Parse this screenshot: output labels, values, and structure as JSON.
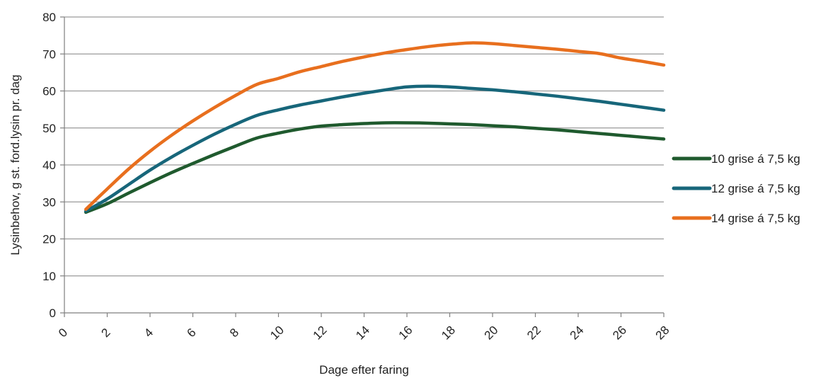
{
  "chart_data": {
    "type": "line",
    "title": "",
    "xlabel": "Dage efter faring",
    "ylabel": "Lysinbehov, g st. ford.lysin pr. dag",
    "xlim": [
      0,
      28
    ],
    "ylim": [
      0,
      80
    ],
    "x_ticks": [
      0,
      2,
      4,
      6,
      8,
      10,
      12,
      14,
      16,
      18,
      20,
      22,
      24,
      26,
      28
    ],
    "y_ticks": [
      0,
      10,
      20,
      30,
      40,
      50,
      60,
      70,
      80
    ],
    "grid": "horizontal",
    "legend_position": "right",
    "series": [
      {
        "name": "10 grise á 7,5 kg",
        "color": "#1f5a2e",
        "x": [
          1,
          2,
          3,
          4,
          5,
          6,
          7,
          8,
          9,
          10,
          11,
          12,
          13,
          14,
          15,
          16,
          17,
          18,
          19,
          20,
          21,
          22,
          23,
          24,
          25,
          26,
          27,
          28
        ],
        "y": [
          27.2,
          29.5,
          32.4,
          35.2,
          37.9,
          40.4,
          42.8,
          45.1,
          47.3,
          48.6,
          49.7,
          50.5,
          50.9,
          51.2,
          51.4,
          51.4,
          51.3,
          51.1,
          50.9,
          50.6,
          50.3,
          49.9,
          49.5,
          49.0,
          48.5,
          48.0,
          47.5,
          47.0
        ]
      },
      {
        "name": "12 grise á 7,5 kg",
        "color": "#17667a",
        "x": [
          1,
          2,
          3,
          4,
          5,
          6,
          7,
          8,
          9,
          10,
          11,
          12,
          13,
          14,
          15,
          16,
          17,
          18,
          19,
          20,
          21,
          22,
          23,
          24,
          25,
          26,
          27,
          28
        ],
        "y": [
          27.5,
          30.8,
          34.7,
          38.6,
          42.1,
          45.3,
          48.3,
          51.0,
          53.4,
          54.9,
          56.2,
          57.3,
          58.4,
          59.4,
          60.3,
          61.1,
          61.3,
          61.1,
          60.7,
          60.3,
          59.8,
          59.2,
          58.6,
          57.9,
          57.2,
          56.4,
          55.6,
          54.8
        ]
      },
      {
        "name": "14 grise á 7,5 kg",
        "color": "#e86f1e",
        "x": [
          1,
          2,
          3,
          4,
          5,
          6,
          7,
          8,
          9,
          10,
          11,
          12,
          13,
          14,
          15,
          16,
          17,
          18,
          19,
          20,
          21,
          22,
          23,
          24,
          25,
          26,
          27,
          28
        ],
        "y": [
          28.0,
          33.5,
          38.9,
          43.7,
          48.0,
          51.9,
          55.5,
          58.8,
          61.8,
          63.4,
          65.2,
          66.6,
          68.0,
          69.2,
          70.3,
          71.2,
          72.0,
          72.6,
          73.0,
          72.8,
          72.3,
          71.8,
          71.3,
          70.7,
          70.1,
          68.9,
          68.0,
          67.0
        ]
      }
    ]
  }
}
